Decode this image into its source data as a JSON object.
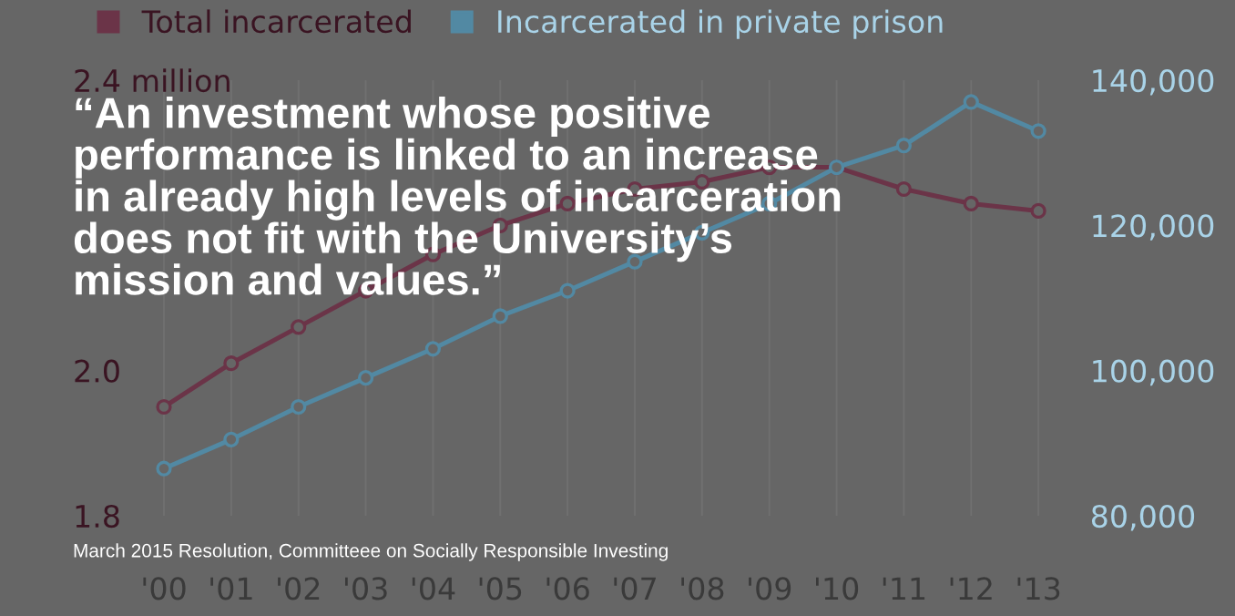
{
  "chart_data": {
    "type": "line",
    "categories": [
      "'00",
      "'01",
      "'02",
      "'03",
      "'04",
      "'05",
      "'06",
      "'07",
      "'08",
      "'09",
      "'10",
      "'11",
      "'12",
      "'13"
    ],
    "series": [
      {
        "name": "Total incarcerated",
        "color": "#6b3448",
        "values": [
          1.95,
          2.01,
          2.06,
          2.11,
          2.16,
          2.2,
          2.23,
          2.25,
          2.26,
          2.28,
          2.28,
          2.25,
          2.23,
          2.22
        ]
      },
      {
        "name": "Incarcerated in private prison",
        "color": "#5289a3",
        "axis": "y2",
        "values": [
          86500,
          90500,
          95000,
          99000,
          103000,
          107500,
          111000,
          115000,
          119000,
          123000,
          128000,
          131000,
          137000,
          133000
        ]
      }
    ],
    "ylim": [
      1.8,
      2.4
    ],
    "yticks": [
      1.8,
      {
        "value": 2.0,
        "label": "2.0"
      },
      {
        "value": 2.4,
        "label": "2.4 million"
      }
    ],
    "y2lim": [
      80000,
      140000
    ],
    "y2ticks": [
      {
        "value": 80000,
        "label": "80,000"
      },
      {
        "value": 100000,
        "label": "100,000"
      },
      {
        "value": 120000,
        "label": "120,000"
      },
      {
        "value": 140000,
        "label": "140,000"
      }
    ],
    "grid": "x",
    "legend": "top left",
    "marker": "circle",
    "line_style": "solid",
    "annotations": [
      "“An investment whose positive\nperformance is linked to an increase\nin already high levels of incarceration\ndoes not fit with the University’s\nmission and values.”",
      "March 2015 Resolution, Committeee on Socially Responsible Investing"
    ]
  }
}
